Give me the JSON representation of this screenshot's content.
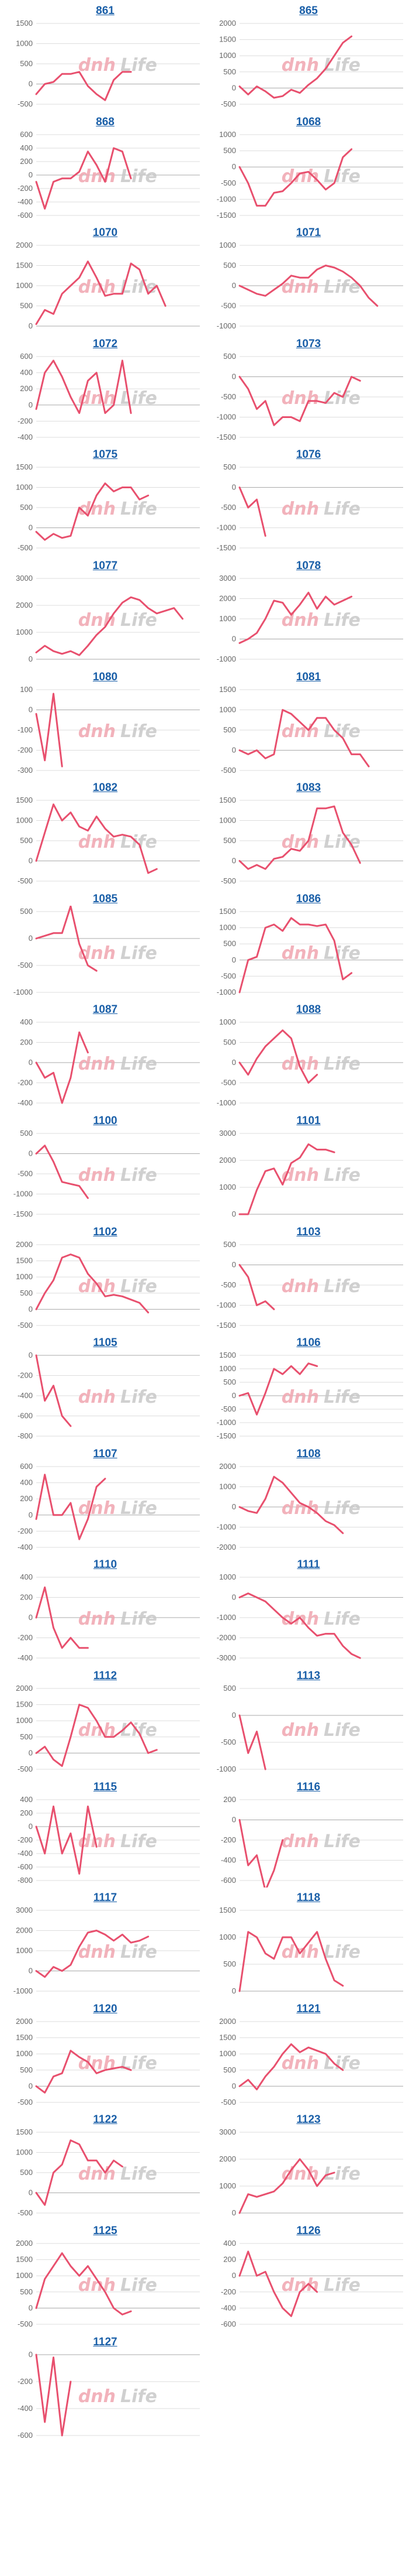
{
  "watermark": {
    "left": "dnh",
    "right": "Life",
    "left_color": "#f0a5b0",
    "right_color": "#c8c8c8"
  },
  "line_color": "#e8506e",
  "grid_color": "#dddddd",
  "chart_data": [
    {
      "type": "line",
      "title": "861",
      "ylim": [
        -500,
        1500
      ],
      "ticks": [
        -500,
        0,
        500,
        1000,
        1500
      ],
      "x_points": 20,
      "values": [
        -250,
        0,
        50,
        250,
        250,
        300,
        -50,
        -250,
        -400,
        100,
        300,
        300
      ]
    },
    {
      "type": "line",
      "title": "865",
      "ylim": [
        -500,
        2000
      ],
      "ticks": [
        -500,
        0,
        500,
        1000,
        1500,
        2000
      ],
      "x_points": 20,
      "values": [
        50,
        -200,
        50,
        -100,
        -300,
        -250,
        -50,
        -150,
        100,
        300,
        600,
        1000,
        1400,
        1600
      ]
    },
    {
      "type": "line",
      "title": "868",
      "ylim": [
        -600,
        600
      ],
      "ticks": [
        -600,
        -400,
        -200,
        0,
        200,
        400,
        600
      ],
      "x_points": 20,
      "values": [
        -100,
        -500,
        -100,
        -50,
        -50,
        50,
        350,
        150,
        -100,
        400,
        350,
        -50
      ]
    },
    {
      "type": "line",
      "title": "1068",
      "ylim": [
        -1500,
        1000
      ],
      "ticks": [
        -1500,
        -1000,
        -500,
        0,
        500,
        1000
      ],
      "x_points": 20,
      "values": [
        0,
        -500,
        -1200,
        -1200,
        -800,
        -750,
        -500,
        -200,
        -150,
        -400,
        -700,
        -500,
        300,
        550
      ]
    },
    {
      "type": "line",
      "title": "1070",
      "ylim": [
        0,
        2000
      ],
      "ticks": [
        0,
        500,
        1000,
        1500,
        2000
      ],
      "x_points": 20,
      "values": [
        50,
        400,
        300,
        800,
        1000,
        1200,
        1600,
        1200,
        750,
        800,
        800,
        1550,
        1400,
        800,
        1000,
        500
      ]
    },
    {
      "type": "line",
      "title": "1071",
      "ylim": [
        -1000,
        1000
      ],
      "ticks": [
        -1000,
        -500,
        0,
        500,
        1000
      ],
      "x_points": 20,
      "values": [
        0,
        -100,
        -200,
        -250,
        -100,
        50,
        250,
        200,
        200,
        400,
        500,
        450,
        350,
        200,
        0,
        -300,
        -500
      ]
    },
    {
      "type": "line",
      "title": "1072",
      "ylim": [
        -400,
        600
      ],
      "ticks": [
        -400,
        -200,
        0,
        200,
        400,
        600
      ],
      "x_points": 20,
      "values": [
        -50,
        400,
        550,
        350,
        100,
        -100,
        300,
        400,
        -100,
        0,
        550,
        -100
      ]
    },
    {
      "type": "line",
      "title": "1073",
      "ylim": [
        -1500,
        500
      ],
      "ticks": [
        -1500,
        -1000,
        -500,
        0,
        500
      ],
      "x_points": 20,
      "values": [
        0,
        -300,
        -800,
        -600,
        -1200,
        -1000,
        -1000,
        -1100,
        -600,
        -600,
        -650,
        -400,
        -500,
        0,
        -100
      ]
    },
    {
      "type": "line",
      "title": "1075",
      "ylim": [
        -500,
        1500
      ],
      "ticks": [
        -500,
        0,
        500,
        1000,
        1500
      ],
      "x_points": 20,
      "values": [
        -100,
        -300,
        -150,
        -250,
        -200,
        500,
        300,
        800,
        1100,
        900,
        1000,
        1000,
        700,
        800
      ]
    },
    {
      "type": "line",
      "title": "1076",
      "ylim": [
        -1500,
        500
      ],
      "ticks": [
        -1500,
        -1000,
        -500,
        0,
        500
      ],
      "x_points": 20,
      "values": [
        0,
        -500,
        -300,
        -1200
      ]
    },
    {
      "type": "line",
      "title": "1077",
      "ylim": [
        0,
        3000
      ],
      "ticks": [
        0,
        1000,
        2000,
        3000
      ],
      "x_points": 20,
      "values": [
        250,
        500,
        300,
        200,
        300,
        150,
        500,
        900,
        1200,
        1700,
        2100,
        2300,
        2200,
        1900,
        1700,
        1800,
        1900,
        1500
      ]
    },
    {
      "type": "line",
      "title": "1078",
      "ylim": [
        -1000,
        3000
      ],
      "ticks": [
        -1000,
        0,
        1000,
        2000,
        3000
      ],
      "x_points": 20,
      "values": [
        -200,
        0,
        300,
        1000,
        1900,
        1800,
        1200,
        1700,
        2300,
        1500,
        2100,
        1700,
        1900,
        2100
      ]
    },
    {
      "type": "line",
      "title": "1080",
      "ylim": [
        -300,
        100
      ],
      "ticks": [
        -300,
        -200,
        -100,
        0,
        100
      ],
      "x_points": 20,
      "values": [
        -20,
        -250,
        80,
        -280
      ]
    },
    {
      "type": "line",
      "title": "1081",
      "ylim": [
        -500,
        1500
      ],
      "ticks": [
        -500,
        0,
        500,
        1000,
        1500
      ],
      "x_points": 20,
      "values": [
        0,
        -100,
        0,
        -200,
        -100,
        1000,
        900,
        700,
        500,
        800,
        800,
        500,
        300,
        -100,
        -100,
        -400
      ]
    },
    {
      "type": "line",
      "title": "1082",
      "ylim": [
        -500,
        1500
      ],
      "ticks": [
        -500,
        0,
        500,
        1000,
        1500
      ],
      "x_points": 20,
      "values": [
        0,
        700,
        1400,
        1000,
        1200,
        850,
        750,
        1100,
        800,
        600,
        650,
        600,
        400,
        -300,
        -200
      ]
    },
    {
      "type": "line",
      "title": "1083",
      "ylim": [
        -500,
        1500
      ],
      "ticks": [
        -500,
        0,
        500,
        1000,
        1500
      ],
      "x_points": 20,
      "values": [
        0,
        -200,
        -100,
        -200,
        50,
        100,
        300,
        250,
        500,
        1300,
        1300,
        1350,
        700,
        400,
        -50
      ]
    },
    {
      "type": "line",
      "title": "1085",
      "ylim": [
        -1000,
        500
      ],
      "ticks": [
        -1000,
        -500,
        0,
        500
      ],
      "x_points": 20,
      "values": [
        0,
        50,
        100,
        100,
        600,
        -100,
        -500,
        -600
      ]
    },
    {
      "type": "line",
      "title": "1086",
      "ylim": [
        -1000,
        1500
      ],
      "ticks": [
        -1000,
        -500,
        0,
        500,
        1000,
        1500
      ],
      "x_points": 20,
      "values": [
        -1000,
        0,
        100,
        1000,
        1100,
        900,
        1300,
        1100,
        1100,
        1050,
        1100,
        600,
        -600,
        -400
      ]
    },
    {
      "type": "line",
      "title": "1087",
      "ylim": [
        -400,
        400
      ],
      "ticks": [
        -400,
        -200,
        0,
        200,
        400
      ],
      "x_points": 20,
      "values": [
        0,
        -150,
        -100,
        -400,
        -150,
        300,
        100
      ]
    },
    {
      "type": "line",
      "title": "1088",
      "ylim": [
        -1000,
        1000
      ],
      "ticks": [
        -1000,
        -500,
        0,
        500,
        1000
      ],
      "x_points": 20,
      "values": [
        0,
        -300,
        100,
        400,
        600,
        800,
        600,
        -100,
        -500,
        -300
      ]
    },
    {
      "type": "line",
      "title": "1100",
      "ylim": [
        -1500,
        500
      ],
      "ticks": [
        -1500,
        -1000,
        -500,
        0,
        500
      ],
      "x_points": 20,
      "values": [
        0,
        200,
        -200,
        -700,
        -750,
        -800,
        -1100
      ]
    },
    {
      "type": "line",
      "title": "1101",
      "ylim": [
        0,
        3000
      ],
      "ticks": [
        0,
        1000,
        2000,
        3000
      ],
      "x_points": 20,
      "values": [
        0,
        0,
        900,
        1600,
        1700,
        1100,
        1900,
        2100,
        2600,
        2400,
        2400,
        2300
      ]
    },
    {
      "type": "line",
      "title": "1102",
      "ylim": [
        -500,
        2000
      ],
      "ticks": [
        -500,
        0,
        500,
        1000,
        1500,
        2000
      ],
      "x_points": 20,
      "values": [
        0,
        500,
        900,
        1600,
        1700,
        1600,
        1100,
        800,
        400,
        450,
        400,
        300,
        200,
        -100
      ]
    },
    {
      "type": "line",
      "title": "1103",
      "ylim": [
        -1500,
        500
      ],
      "ticks": [
        -1500,
        -1000,
        -500,
        0,
        500
      ],
      "x_points": 20,
      "values": [
        0,
        -300,
        -1000,
        -900,
        -1100
      ]
    },
    {
      "type": "line",
      "title": "1105",
      "ylim": [
        -800,
        0
      ],
      "ticks": [
        -800,
        -600,
        -400,
        -200,
        0
      ],
      "x_points": 20,
      "values": [
        0,
        -450,
        -300,
        -600,
        -700
      ]
    },
    {
      "type": "line",
      "title": "1106",
      "ylim": [
        -1500,
        1500
      ],
      "ticks": [
        -1500,
        -1000,
        -500,
        0,
        500,
        1000,
        1500
      ],
      "x_points": 20,
      "values": [
        0,
        100,
        -700,
        100,
        1000,
        800,
        1100,
        800,
        1200,
        1100
      ]
    },
    {
      "type": "line",
      "title": "1107",
      "ylim": [
        -400,
        600
      ],
      "ticks": [
        -400,
        -200,
        0,
        200,
        400,
        600
      ],
      "x_points": 20,
      "values": [
        -50,
        500,
        0,
        0,
        150,
        -300,
        -50,
        350,
        450
      ]
    },
    {
      "type": "line",
      "title": "1108",
      "ylim": [
        -2000,
        2000
      ],
      "ticks": [
        -2000,
        -1000,
        0,
        1000,
        2000
      ],
      "x_points": 20,
      "values": [
        0,
        -200,
        -300,
        400,
        1500,
        1200,
        700,
        200,
        0,
        -300,
        -700,
        -900,
        -1300
      ]
    },
    {
      "type": "line",
      "title": "1110",
      "ylim": [
        -400,
        400
      ],
      "ticks": [
        -400,
        -200,
        0,
        200,
        400
      ],
      "x_points": 20,
      "values": [
        0,
        300,
        -100,
        -300,
        -200,
        -300,
        -300
      ]
    },
    {
      "type": "line",
      "title": "1111",
      "ylim": [
        -3000,
        1000
      ],
      "ticks": [
        -3000,
        -2000,
        -1000,
        0,
        1000
      ],
      "x_points": 20,
      "values": [
        0,
        200,
        0,
        -200,
        -600,
        -1000,
        -1300,
        -1000,
        -1500,
        -1900,
        -1800,
        -1800,
        -2400,
        -2800,
        -3000
      ]
    },
    {
      "type": "line",
      "title": "1112",
      "ylim": [
        -500,
        2000
      ],
      "ticks": [
        -500,
        0,
        500,
        1000,
        1500,
        2000
      ],
      "x_points": 20,
      "values": [
        0,
        200,
        -200,
        -400,
        500,
        1500,
        1400,
        1000,
        500,
        500,
        700,
        950,
        600,
        0,
        100
      ]
    },
    {
      "type": "line",
      "title": "1113",
      "ylim": [
        -1000,
        500
      ],
      "ticks": [
        -1000,
        -500,
        0,
        500
      ],
      "x_points": 20,
      "values": [
        0,
        -700,
        -300,
        -1000
      ]
    },
    {
      "type": "line",
      "title": "1115",
      "ylim": [
        -800,
        400
      ],
      "ticks": [
        -800,
        -600,
        -400,
        -200,
        0,
        200,
        400
      ],
      "x_points": 20,
      "values": [
        0,
        -400,
        300,
        -400,
        -100,
        -700,
        300,
        -300
      ]
    },
    {
      "type": "line",
      "title": "1116",
      "ylim": [
        -600,
        200
      ],
      "ticks": [
        -600,
        -400,
        -200,
        0,
        200
      ],
      "x_points": 20,
      "values": [
        0,
        -450,
        -350,
        -700,
        -500,
        -200
      ]
    },
    {
      "type": "line",
      "title": "1117",
      "ylim": [
        -1000,
        3000
      ],
      "ticks": [
        -1000,
        0,
        1000,
        2000,
        3000
      ],
      "x_points": 20,
      "values": [
        0,
        -300,
        200,
        0,
        300,
        1200,
        1900,
        2000,
        1800,
        1500,
        1800,
        1400,
        1500,
        1700
      ]
    },
    {
      "type": "line",
      "title": "1118",
      "ylim": [
        0,
        1500
      ],
      "ticks": [
        0,
        500,
        1000,
        1500
      ],
      "x_points": 20,
      "values": [
        0,
        1100,
        1000,
        700,
        600,
        1000,
        1000,
        700,
        900,
        1100,
        600,
        200,
        100
      ]
    },
    {
      "type": "line",
      "title": "1120",
      "ylim": [
        -500,
        2000
      ],
      "ticks": [
        -500,
        0,
        500,
        1000,
        1500,
        2000
      ],
      "x_points": 20,
      "values": [
        0,
        -200,
        300,
        400,
        1100,
        900,
        750,
        400,
        500,
        550,
        600,
        500
      ]
    },
    {
      "type": "line",
      "title": "1121",
      "ylim": [
        -500,
        2000
      ],
      "ticks": [
        -500,
        0,
        500,
        1000,
        1500,
        2000
      ],
      "x_points": 20,
      "values": [
        0,
        200,
        -100,
        300,
        600,
        1000,
        1300,
        1050,
        1200,
        1100,
        1000,
        700,
        500
      ]
    },
    {
      "type": "line",
      "title": "1122",
      "ylim": [
        -500,
        1500
      ],
      "ticks": [
        -500,
        0,
        500,
        1000,
        1500
      ],
      "x_points": 20,
      "values": [
        0,
        -300,
        500,
        700,
        1300,
        1200,
        800,
        800,
        500,
        800,
        650
      ]
    },
    {
      "type": "line",
      "title": "1123",
      "ylim": [
        0,
        3000
      ],
      "ticks": [
        0,
        1000,
        2000,
        3000
      ],
      "x_points": 20,
      "values": [
        0,
        700,
        600,
        700,
        800,
        1100,
        1600,
        2000,
        1600,
        1000,
        1400,
        1500
      ]
    },
    {
      "type": "line",
      "title": "1125",
      "ylim": [
        -500,
        2000
      ],
      "ticks": [
        -500,
        0,
        500,
        1000,
        1500,
        2000
      ],
      "x_points": 20,
      "values": [
        0,
        900,
        1300,
        1700,
        1300,
        1000,
        1300,
        900,
        500,
        0,
        -200,
        -100
      ]
    },
    {
      "type": "line",
      "title": "1126",
      "ylim": [
        -600,
        400
      ],
      "ticks": [
        -600,
        -400,
        -200,
        0,
        200,
        400
      ],
      "x_points": 20,
      "values": [
        0,
        300,
        0,
        50,
        -200,
        -400,
        -500,
        -200,
        -100,
        -200
      ]
    },
    {
      "type": "line",
      "title": "1127",
      "ylim": [
        -600,
        0
      ],
      "ticks": [
        -600,
        -400,
        -200,
        0
      ],
      "x_points": 20,
      "values": [
        0,
        -500,
        -20,
        -600,
        -200
      ]
    }
  ]
}
